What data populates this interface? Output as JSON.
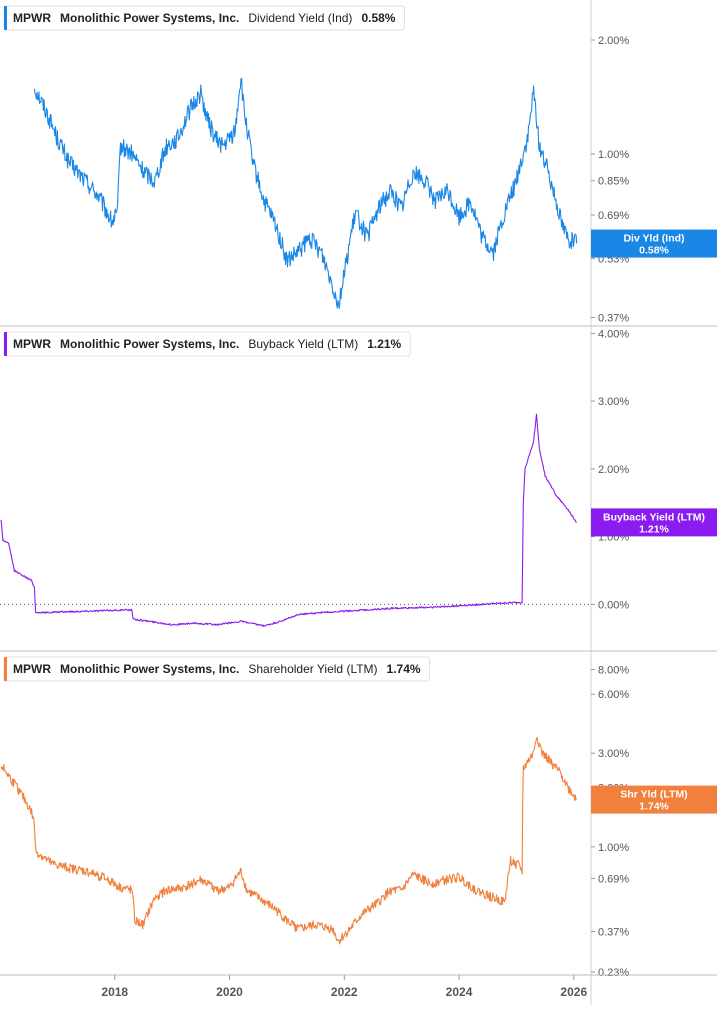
{
  "chart_data": [
    {
      "type": "line",
      "legend": {
        "ticker": "MPWR",
        "company": "Monolithic Power Systems, Inc.",
        "metric": "Dividend Yield (Ind)",
        "value": "0.58%"
      },
      "badge": {
        "label": "Div Yld (Ind)",
        "value": "0.58%"
      },
      "color": "#1a87e6",
      "scale": "log",
      "ylim": [
        0.36,
        2.4
      ],
      "yticks": [
        {
          "v": 2.0,
          "label": "2.00%"
        },
        {
          "v": 1.0,
          "label": "1.00%"
        },
        {
          "v": 0.85,
          "label": "0.85%"
        },
        {
          "v": 0.69,
          "label": "0.69%"
        },
        {
          "v": 0.53,
          "label": "0.53%"
        },
        {
          "v": 0.37,
          "label": "0.37%"
        }
      ],
      "x": [
        2016.6,
        2016.8,
        2017.0,
        2017.2,
        2017.4,
        2017.7,
        2017.95,
        2018.05,
        2018.1,
        2018.3,
        2018.5,
        2018.7,
        2018.9,
        2019.1,
        2019.3,
        2019.5,
        2019.6,
        2019.75,
        2019.9,
        2020.1,
        2020.2,
        2020.25,
        2020.4,
        2020.6,
        2020.8,
        2021.0,
        2021.2,
        2021.4,
        2021.6,
        2021.8,
        2021.9,
        2022.0,
        2022.2,
        2022.4,
        2022.6,
        2022.8,
        2023.0,
        2023.2,
        2023.4,
        2023.6,
        2023.8,
        2024.0,
        2024.2,
        2024.4,
        2024.6,
        2024.8,
        2025.0,
        2025.2,
        2025.3,
        2025.4,
        2025.6,
        2025.8,
        2025.9,
        2026.05
      ],
      "values": [
        1.5,
        1.3,
        1.1,
        0.95,
        0.88,
        0.78,
        0.66,
        0.7,
        1.05,
        1.0,
        0.9,
        0.85,
        1.05,
        1.1,
        1.3,
        1.45,
        1.25,
        1.1,
        1.05,
        1.15,
        1.6,
        1.3,
        0.95,
        0.75,
        0.65,
        0.52,
        0.55,
        0.6,
        0.55,
        0.45,
        0.4,
        0.48,
        0.7,
        0.6,
        0.72,
        0.8,
        0.72,
        0.9,
        0.85,
        0.75,
        0.8,
        0.68,
        0.75,
        0.6,
        0.55,
        0.7,
        0.85,
        1.1,
        1.45,
        1.05,
        0.85,
        0.65,
        0.6,
        0.58
      ]
    },
    {
      "type": "line",
      "legend": {
        "ticker": "MPWR",
        "company": "Monolithic Power Systems, Inc.",
        "metric": "Buyback Yield (LTM)",
        "value": "1.21%"
      },
      "badge": {
        "label": "Buyback Yield (LTM)",
        "value": "1.21%"
      },
      "color": "#8a1cf0",
      "scale": "linear",
      "ylim": [
        -0.6,
        4.05
      ],
      "yticks": [
        {
          "v": 4.0,
          "label": "4.00%"
        },
        {
          "v": 3.0,
          "label": "3.00%"
        },
        {
          "v": 2.0,
          "label": "2.00%"
        },
        {
          "v": 1.0,
          "label": "1.00%"
        },
        {
          "v": 0.0,
          "label": "0.00%"
        }
      ],
      "zero_line": true,
      "x": [
        2016.02,
        2016.05,
        2016.15,
        2016.25,
        2016.45,
        2016.55,
        2016.6,
        2016.62,
        2016.8,
        2017.5,
        2018.3,
        2018.32,
        2018.6,
        2019.0,
        2019.4,
        2019.8,
        2020.2,
        2020.6,
        2020.9,
        2021.2,
        2021.6,
        2022.0,
        2022.4,
        2022.8,
        2023.2,
        2023.6,
        2024.0,
        2024.4,
        2024.8,
        2025.1,
        2025.12,
        2025.15,
        2025.3,
        2025.35,
        2025.4,
        2025.5,
        2025.7,
        2025.9,
        2026.05
      ],
      "values": [
        1.25,
        0.95,
        0.9,
        0.5,
        0.4,
        0.35,
        0.25,
        -0.12,
        -0.12,
        -0.1,
        -0.08,
        -0.22,
        -0.25,
        -0.3,
        -0.28,
        -0.3,
        -0.25,
        -0.32,
        -0.25,
        -0.15,
        -0.12,
        -0.1,
        -0.08,
        -0.06,
        -0.05,
        -0.04,
        -0.02,
        0.0,
        0.02,
        0.03,
        1.5,
        2.0,
        2.4,
        2.8,
        2.3,
        1.9,
        1.6,
        1.4,
        1.21
      ]
    },
    {
      "type": "line",
      "legend": {
        "ticker": "MPWR",
        "company": "Monolithic Power Systems, Inc.",
        "metric": "Shareholder Yield (LTM)",
        "value": "1.74%"
      },
      "badge": {
        "label": "Shr Yld (LTM)",
        "value": "1.74%"
      },
      "color": "#f0803c",
      "scale": "log",
      "ylim": [
        0.23,
        9.5
      ],
      "yticks": [
        {
          "v": 8.0,
          "label": "8.00%"
        },
        {
          "v": 6.0,
          "label": "6.00%"
        },
        {
          "v": 3.0,
          "label": "3.00%"
        },
        {
          "v": 2.0,
          "label": "2.00%"
        },
        {
          "v": 1.0,
          "label": "1.00%"
        },
        {
          "v": 0.69,
          "label": "0.69%"
        },
        {
          "v": 0.37,
          "label": "0.37%"
        },
        {
          "v": 0.23,
          "label": "0.23%"
        }
      ],
      "x": [
        2016.02,
        2016.2,
        2016.4,
        2016.55,
        2016.6,
        2016.62,
        2016.9,
        2017.2,
        2017.5,
        2017.8,
        2018.1,
        2018.3,
        2018.35,
        2018.5,
        2018.7,
        2018.9,
        2019.2,
        2019.5,
        2019.8,
        2020.0,
        2020.2,
        2020.3,
        2020.5,
        2020.8,
        2021.0,
        2021.2,
        2021.5,
        2021.8,
        2021.9,
        2022.1,
        2022.3,
        2022.6,
        2022.8,
        2023.0,
        2023.2,
        2023.5,
        2023.8,
        2024.0,
        2024.3,
        2024.6,
        2024.8,
        2024.9,
        2025.05,
        2025.1,
        2025.12,
        2025.3,
        2025.35,
        2025.45,
        2025.6,
        2025.8,
        2025.9,
        2026.05
      ],
      "values": [
        2.6,
        2.2,
        1.8,
        1.5,
        1.3,
        0.95,
        0.82,
        0.78,
        0.75,
        0.7,
        0.62,
        0.6,
        0.42,
        0.4,
        0.55,
        0.6,
        0.62,
        0.68,
        0.6,
        0.62,
        0.75,
        0.6,
        0.55,
        0.48,
        0.42,
        0.38,
        0.4,
        0.38,
        0.33,
        0.38,
        0.45,
        0.52,
        0.6,
        0.6,
        0.72,
        0.65,
        0.68,
        0.7,
        0.6,
        0.55,
        0.52,
        0.85,
        0.8,
        0.75,
        2.5,
        3.0,
        3.7,
        3.0,
        2.7,
        2.3,
        2.0,
        1.74
      ]
    }
  ],
  "x_axis": {
    "ticks": [
      {
        "v": 2018,
        "label": "2018"
      },
      {
        "v": 2020,
        "label": "2020"
      },
      {
        "v": 2022,
        "label": "2022"
      },
      {
        "v": 2024,
        "label": "2024"
      },
      {
        "v": 2026,
        "label": "2026"
      }
    ],
    "xlim": [
      2016.0,
      2026.3
    ]
  }
}
